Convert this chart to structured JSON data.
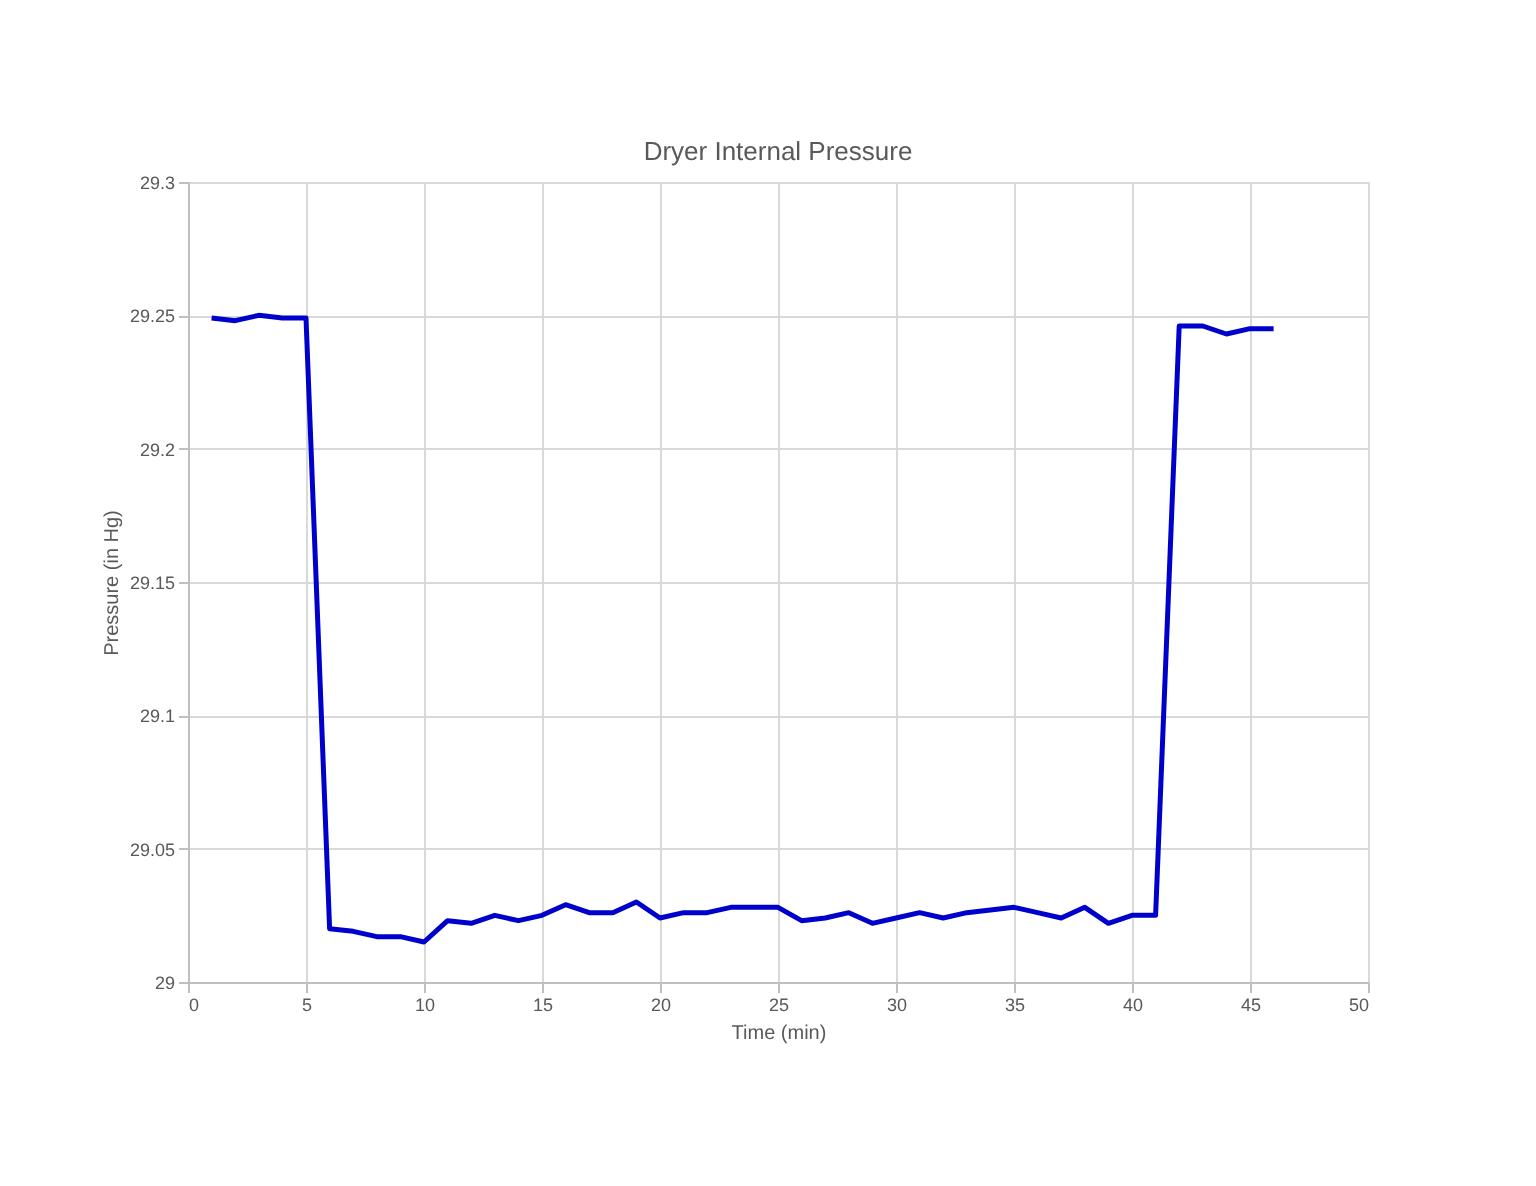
{
  "chart_data": {
    "type": "line",
    "title": "Dryer Internal Pressure",
    "xlabel": "Time (min)",
    "ylabel": "Pressure (in Hg)",
    "x": [
      1,
      2,
      3,
      4,
      5,
      6,
      7,
      8,
      9,
      10,
      11,
      12,
      13,
      14,
      15,
      16,
      17,
      18,
      19,
      20,
      21,
      22,
      23,
      24,
      25,
      26,
      27,
      28,
      29,
      30,
      31,
      32,
      33,
      34,
      35,
      36,
      37,
      38,
      39,
      40,
      41,
      42,
      43,
      44,
      45,
      46
    ],
    "series": [
      {
        "color": "#0000cc",
        "values": [
          29.249,
          29.248,
          29.25,
          29.249,
          29.249,
          29.02,
          29.019,
          29.017,
          29.017,
          29.015,
          29.023,
          29.022,
          29.025,
          29.023,
          29.025,
          29.029,
          29.026,
          29.026,
          29.03,
          29.024,
          29.026,
          29.026,
          29.028,
          29.028,
          29.028,
          29.023,
          29.024,
          29.026,
          29.022,
          29.024,
          29.026,
          29.024,
          29.026,
          29.027,
          29.028,
          29.026,
          29.024,
          29.028,
          29.022,
          29.025,
          29.025,
          29.246,
          29.246,
          29.243,
          29.245,
          29.245
        ]
      }
    ],
    "xlim": [
      0,
      50
    ],
    "xticks": [
      0,
      5,
      10,
      15,
      20,
      25,
      30,
      35,
      40,
      45,
      50
    ],
    "ylim": [
      29,
      29.3
    ],
    "yticks": [
      29,
      29.05,
      29.1,
      29.15,
      29.2,
      29.25,
      29.3
    ],
    "grid": true,
    "marker": "none",
    "line_style": "solid"
  }
}
